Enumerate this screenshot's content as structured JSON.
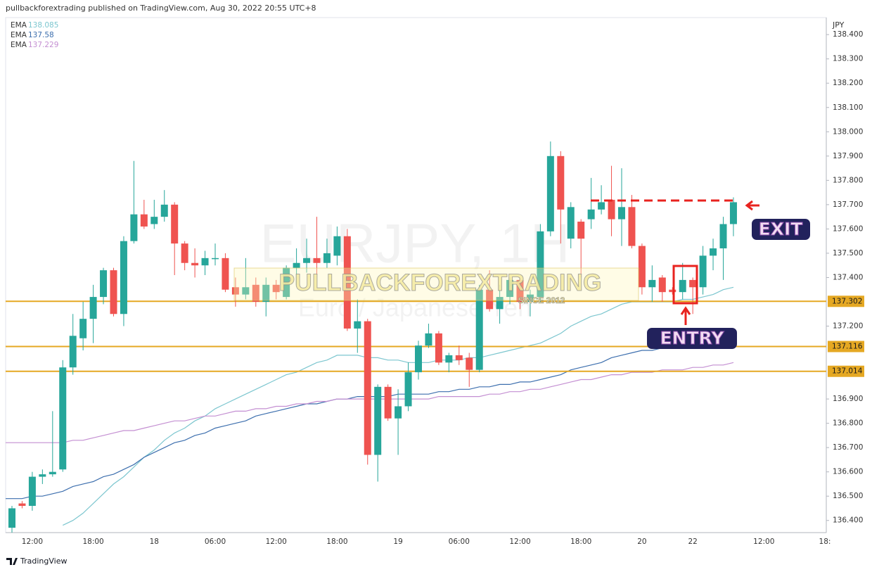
{
  "header": "pullbackforextrading published on TradingView.com, Aug 30, 2022 20:55 UTC+8",
  "footer": "TradingView",
  "chart_data": {
    "type": "candlestick",
    "title": "EURJPY, 1H",
    "subtitle": "Euro / Japanese Yen",
    "y_axis_label": "JPY",
    "up_color": "#26a69a",
    "down_color": "#ef5350",
    "grid": false,
    "categories": [
      null,
      null,
      "12:00",
      null,
      null,
      null,
      null,
      null,
      "18:00",
      null,
      null,
      null,
      null,
      null,
      "18",
      null,
      null,
      null,
      null,
      null,
      "06:00",
      null,
      null,
      null,
      null,
      null,
      "12:00",
      null,
      null,
      null,
      null,
      null,
      "18:00",
      null,
      null,
      null,
      null,
      null,
      "19",
      null,
      null,
      null,
      null,
      null,
      "06:00",
      null,
      null,
      null,
      null,
      null,
      "12:00",
      null,
      null,
      null,
      null,
      null,
      "18:00",
      null,
      null,
      null,
      null,
      null,
      "20",
      null,
      null,
      null,
      null,
      "22",
      null,
      null,
      null,
      null,
      null,
      null,
      "12:00",
      null,
      null,
      null,
      null,
      null,
      "18:"
    ],
    "open": [
      136.37,
      136.47,
      136.46,
      136.58,
      136.59,
      136.61,
      137.03,
      137.15,
      137.23,
      137.32,
      137.43,
      137.25,
      137.55,
      137.66,
      137.62,
      137.65,
      137.7,
      137.54,
      137.46,
      137.45,
      137.48,
      137.48,
      137.36,
      137.33,
      137.37,
      137.3,
      137.37,
      137.32,
      137.44,
      137.46,
      137.48,
      137.46,
      137.49,
      137.57,
      137.19,
      137.22,
      136.67,
      136.95,
      136.82,
      136.87,
      137.01,
      137.12,
      137.17,
      137.05,
      137.08,
      137.07,
      137.02,
      137.35,
      137.27,
      137.32,
      137.39,
      137.3,
      137.32,
      137.59,
      137.9,
      137.56,
      137.63,
      137.64,
      137.68,
      137.72,
      137.64,
      137.69,
      137.53,
      137.36,
      137.4,
      137.35,
      137.34,
      137.39,
      137.36,
      137.49,
      137.52,
      137.62,
      null,
      null,
      null,
      null,
      null,
      null,
      null,
      null,
      null
    ],
    "high": [
      136.46,
      136.48,
      136.6,
      136.61,
      136.85,
      137.06,
      137.25,
      137.3,
      137.37,
      137.44,
      137.44,
      137.57,
      137.88,
      137.72,
      137.72,
      137.76,
      137.71,
      137.55,
      137.52,
      137.51,
      137.54,
      137.5,
      137.4,
      137.48,
      137.4,
      137.4,
      137.39,
      137.45,
      137.52,
      137.56,
      137.65,
      137.56,
      137.61,
      137.6,
      137.31,
      137.23,
      136.96,
      136.96,
      136.94,
      137.05,
      137.14,
      137.21,
      137.18,
      137.09,
      137.12,
      137.09,
      137.37,
      137.43,
      137.37,
      137.4,
      137.4,
      137.35,
      137.62,
      137.96,
      137.92,
      137.71,
      137.64,
      137.81,
      137.78,
      137.86,
      137.85,
      137.74,
      137.54,
      137.45,
      137.41,
      137.36,
      137.46,
      137.4,
      137.53,
      137.56,
      137.65,
      137.73,
      null,
      null,
      null,
      null,
      null,
      null,
      null,
      null,
      null
    ],
    "low": [
      136.35,
      136.45,
      136.44,
      136.55,
      136.58,
      136.6,
      137.0,
      137.1,
      137.13,
      137.29,
      137.24,
      137.2,
      137.54,
      137.6,
      137.6,
      137.63,
      137.41,
      137.43,
      137.4,
      137.41,
      137.45,
      137.34,
      137.28,
      137.31,
      137.28,
      137.24,
      137.31,
      137.31,
      137.37,
      137.42,
      137.41,
      137.44,
      137.45,
      137.18,
      137.09,
      136.63,
      136.56,
      136.81,
      136.67,
      136.85,
      136.98,
      137.11,
      137.04,
      137.01,
      137.04,
      136.95,
      137.01,
      137.26,
      137.21,
      137.29,
      137.27,
      137.24,
      137.3,
      137.57,
      137.54,
      137.52,
      137.4,
      137.6,
      137.66,
      137.57,
      137.53,
      137.52,
      137.33,
      137.3,
      137.3,
      137.33,
      137.31,
      137.25,
      137.33,
      137.43,
      137.39,
      137.57,
      null,
      null,
      null,
      null,
      null,
      null,
      null,
      null,
      null
    ],
    "close": [
      136.45,
      136.46,
      136.58,
      136.59,
      136.6,
      137.03,
      137.16,
      137.23,
      137.32,
      137.43,
      137.25,
      137.55,
      137.66,
      137.61,
      137.65,
      137.7,
      137.54,
      137.46,
      137.45,
      137.48,
      137.48,
      137.35,
      137.33,
      137.36,
      137.3,
      137.37,
      137.34,
      137.44,
      137.46,
      137.48,
      137.46,
      137.5,
      137.57,
      137.19,
      137.22,
      136.67,
      136.95,
      136.82,
      136.87,
      137.01,
      137.12,
      137.17,
      137.05,
      137.08,
      137.06,
      137.02,
      137.35,
      137.27,
      137.32,
      137.39,
      137.3,
      137.33,
      137.59,
      137.9,
      137.68,
      137.69,
      137.56,
      137.68,
      137.71,
      137.64,
      137.69,
      137.53,
      137.36,
      137.39,
      137.34,
      137.34,
      137.39,
      137.36,
      137.49,
      137.52,
      137.62,
      137.71,
      null,
      null,
      null,
      null,
      null,
      null,
      null,
      null,
      null
    ],
    "series": [
      {
        "name": "EMA",
        "last": 138.085,
        "color": "#7cc6cf",
        "values": [
          null,
          null,
          null,
          null,
          null,
          136.38,
          136.4,
          136.43,
          136.47,
          136.51,
          136.55,
          136.58,
          136.62,
          136.66,
          136.69,
          136.73,
          136.76,
          136.78,
          136.81,
          136.83,
          136.86,
          136.88,
          136.9,
          136.92,
          136.94,
          136.96,
          136.98,
          137.0,
          137.01,
          137.03,
          137.05,
          137.06,
          137.08,
          137.08,
          137.08,
          137.07,
          137.07,
          137.06,
          137.06,
          137.05,
          137.05,
          137.05,
          137.06,
          137.06,
          137.06,
          137.07,
          137.07,
          137.08,
          137.09,
          137.1,
          137.11,
          137.12,
          137.13,
          137.15,
          137.17,
          137.2,
          137.22,
          137.24,
          137.25,
          137.27,
          137.29,
          137.3,
          137.3,
          137.3,
          137.3,
          137.3,
          137.31,
          137.31,
          137.32,
          137.33,
          137.35,
          137.36,
          null,
          null,
          null,
          null,
          null,
          null,
          null,
          null,
          null
        ]
      },
      {
        "name": "EMA",
        "last": 137.58,
        "color": "#3d6fae",
        "values": [
          136.49,
          136.49,
          136.5,
          136.5,
          136.51,
          136.52,
          136.54,
          136.55,
          136.56,
          136.58,
          136.59,
          136.61,
          136.63,
          136.66,
          136.68,
          136.7,
          136.72,
          136.73,
          136.75,
          136.76,
          136.78,
          136.79,
          136.8,
          136.81,
          136.83,
          136.84,
          136.85,
          136.86,
          136.87,
          136.88,
          136.88,
          136.89,
          136.9,
          136.9,
          136.91,
          136.91,
          136.91,
          136.91,
          136.92,
          136.92,
          136.92,
          136.92,
          136.93,
          136.93,
          136.94,
          136.94,
          136.95,
          136.95,
          136.96,
          136.96,
          136.97,
          136.97,
          136.98,
          136.99,
          137.0,
          137.02,
          137.03,
          137.04,
          137.05,
          137.07,
          137.08,
          137.09,
          137.1,
          137.1,
          137.11,
          137.12,
          137.13,
          137.14,
          137.15,
          137.15,
          137.16,
          137.17,
          null,
          null,
          null,
          null,
          null,
          null,
          null,
          null,
          null
        ]
      },
      {
        "name": "EMA",
        "last": 137.229,
        "color": "#c48fd2",
        "values": [
          136.72,
          136.72,
          136.72,
          136.72,
          136.72,
          136.72,
          136.73,
          136.73,
          136.74,
          136.75,
          136.76,
          136.77,
          136.77,
          136.78,
          136.79,
          136.8,
          136.81,
          136.81,
          136.82,
          136.83,
          136.83,
          136.84,
          136.85,
          136.85,
          136.86,
          136.86,
          136.87,
          136.87,
          136.88,
          136.88,
          136.89,
          136.89,
          136.9,
          136.9,
          136.9,
          136.9,
          136.9,
          136.9,
          136.9,
          136.9,
          136.9,
          136.9,
          136.91,
          136.91,
          136.91,
          136.91,
          136.91,
          136.92,
          136.92,
          136.93,
          136.93,
          136.94,
          136.94,
          136.95,
          136.96,
          136.97,
          136.98,
          136.98,
          136.99,
          137.0,
          137.0,
          137.01,
          137.01,
          137.01,
          137.02,
          137.02,
          137.02,
          137.03,
          137.03,
          137.04,
          137.04,
          137.05,
          null,
          null,
          null,
          null,
          null,
          null,
          null,
          null,
          null
        ]
      }
    ],
    "levels": [
      137.302,
      137.116,
      137.014
    ],
    "level_color": "#e5a823",
    "ylim": [
      136.35,
      138.47
    ],
    "yticks": [
      {
        "value": 136.4,
        "label": "136.400"
      },
      {
        "value": 136.5,
        "label": "136.500"
      },
      {
        "value": 136.6,
        "label": "136.600"
      },
      {
        "value": 136.7,
        "label": "136.700"
      },
      {
        "value": 136.8,
        "label": "136.800"
      },
      {
        "value": 136.9,
        "label": "136.900"
      },
      {
        "value": 137.2,
        "label": "137.200"
      },
      {
        "value": 137.4,
        "label": "137.400"
      },
      {
        "value": 137.5,
        "label": "137.500"
      },
      {
        "value": 137.6,
        "label": "137.600"
      },
      {
        "value": 137.7,
        "label": "137.700"
      },
      {
        "value": 137.8,
        "label": "137.800"
      },
      {
        "value": 137.9,
        "label": "137.900"
      },
      {
        "value": 138.0,
        "label": "138.000"
      },
      {
        "value": 138.1,
        "label": "138.100"
      },
      {
        "value": 138.2,
        "label": "138.200"
      },
      {
        "value": 138.3,
        "label": "138.300"
      },
      {
        "value": 138.4,
        "label": "138.400"
      }
    ],
    "annotations": {
      "exit": "EXIT",
      "entry": "ENTRY",
      "brand": "PULLBACKFOREXTRADING",
      "brand_sub": "SINCE 2012"
    }
  }
}
